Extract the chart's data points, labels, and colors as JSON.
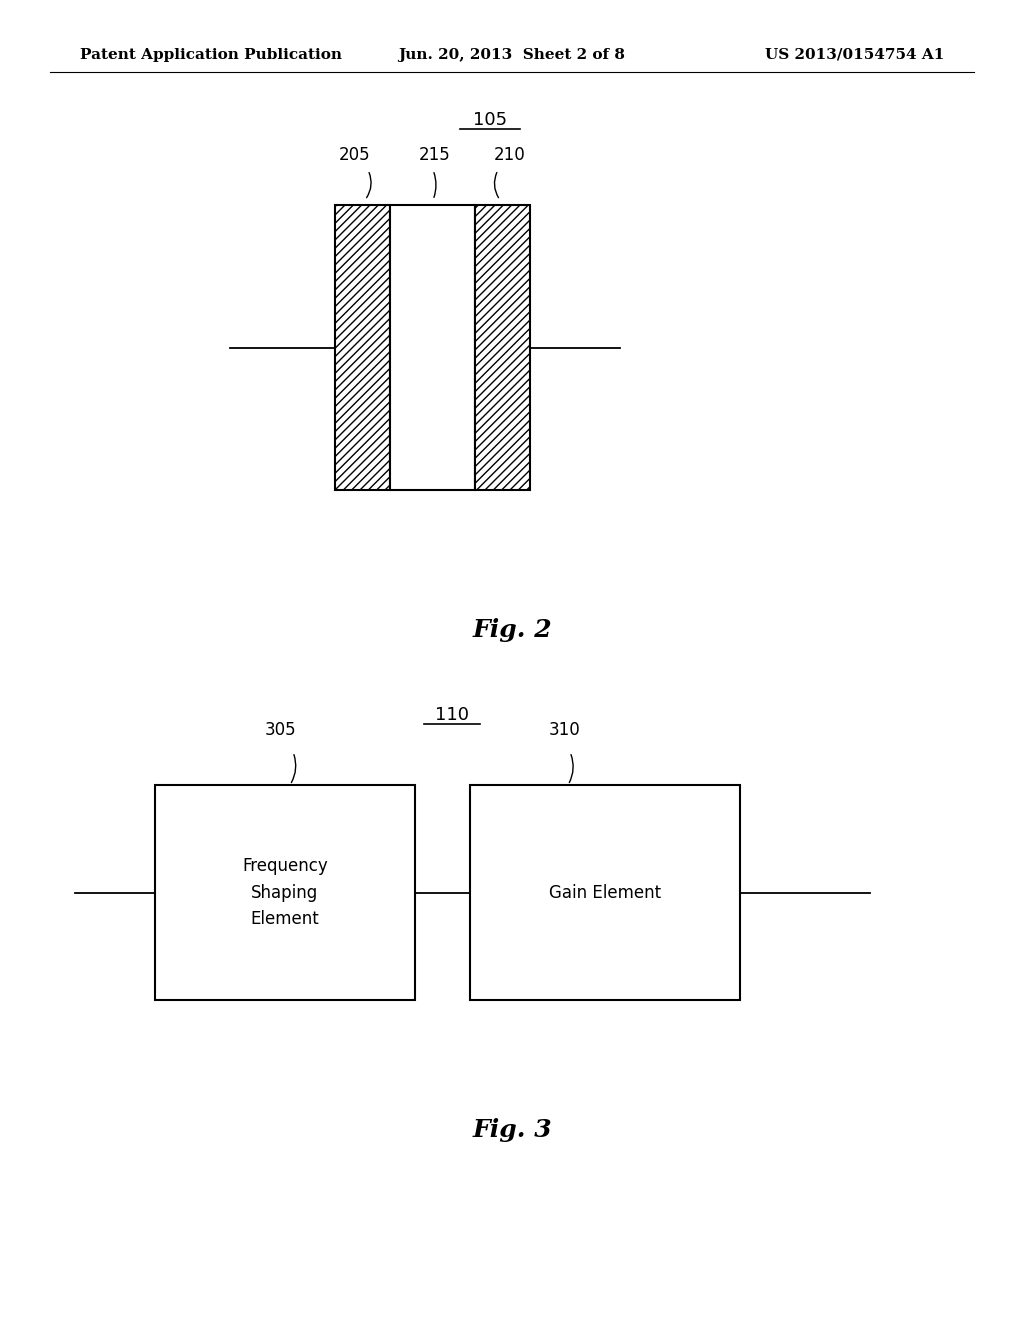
{
  "bg_color": "#ffffff",
  "header_left": "Patent Application Publication",
  "header_center": "Jun. 20, 2013  Sheet 2 of 8",
  "header_right": "US 2013/0154754 A1",
  "header_fontsize": 11,
  "fig2_label": "Fig. 2",
  "fig3_label": "Fig. 3",
  "label_105": "105",
  "label_205": "205",
  "label_215": "215",
  "label_210": "210",
  "label_110": "110",
  "label_305": "305",
  "label_310": "310"
}
